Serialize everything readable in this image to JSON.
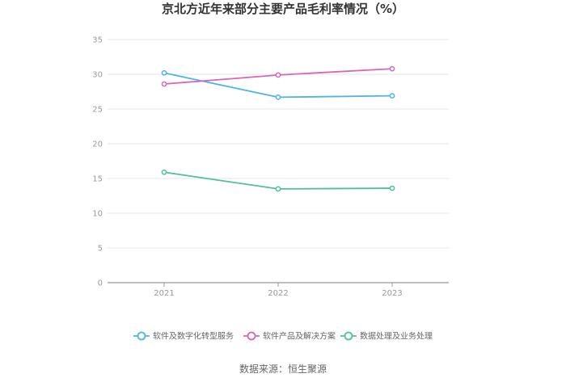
{
  "chart_data": {
    "type": "line",
    "title": "京北方近年来部分主要产品毛利率情况（%）",
    "xlabel": "",
    "ylabel": "",
    "categories": [
      "2021",
      "2022",
      "2023"
    ],
    "ylim": [
      0,
      35
    ],
    "yticks": [
      0,
      5,
      10,
      15,
      20,
      25,
      30,
      35
    ],
    "grid": true,
    "legend_position": "bottom",
    "series": [
      {
        "name": "软件及数字化转型服务",
        "color": "#4db3e8",
        "values": [
          30.2,
          26.7,
          26.9
        ]
      },
      {
        "name": "软件产品及解决方案",
        "color": "#d766b8",
        "values": [
          28.6,
          29.9,
          30.8
        ]
      },
      {
        "name": "数据处理及业务处理",
        "color": "#4fbf9f",
        "values": [
          15.9,
          13.5,
          13.6
        ]
      }
    ]
  },
  "source": "数据来源：恒生聚源"
}
